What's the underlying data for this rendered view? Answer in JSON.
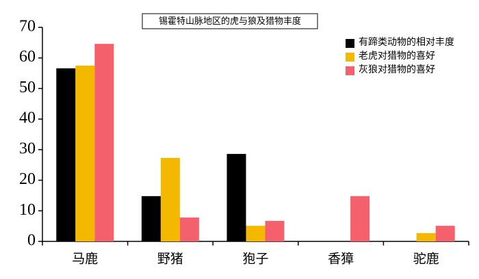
{
  "chart_data": {
    "type": "bar",
    "title": "锡霍特山脉地区的虎与狼及猎物丰度",
    "categories": [
      "马鹿",
      "野猪",
      "狍子",
      "香獐",
      "驼鹿"
    ],
    "series": [
      {
        "name": "有蹄类动物的相对丰度",
        "color": "#000000",
        "values": [
          56.6,
          14.8,
          28.6,
          0,
          0
        ]
      },
      {
        "name": "老虎对猎物的喜好",
        "color": "#f5b800",
        "values": [
          57.5,
          27.3,
          5.1,
          0,
          2.7
        ]
      },
      {
        "name": "灰狼对猎物的喜好",
        "color": "#f4606c",
        "values": [
          64.6,
          7.8,
          6.7,
          14.8,
          5.1
        ]
      }
    ],
    "ylim": [
      0,
      70
    ],
    "yticks": [
      0,
      10,
      20,
      30,
      40,
      50,
      60,
      70
    ],
    "grid": false
  }
}
